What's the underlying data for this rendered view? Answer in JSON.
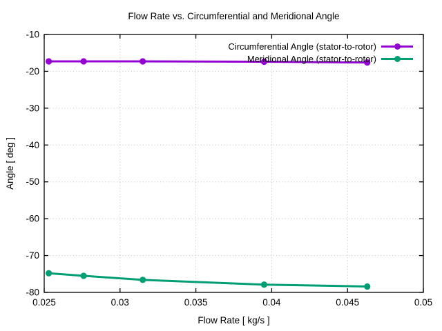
{
  "chart_data": {
    "type": "line",
    "title": "Flow Rate vs. Circumferential and Meridional Angle",
    "xlabel": "Flow Rate [ kg/s ]",
    "ylabel": "Angle [ deg ]",
    "xlim": [
      0.025,
      0.05
    ],
    "ylim": [
      -80,
      -10
    ],
    "xticks": [
      0.025,
      0.03,
      0.035,
      0.04,
      0.045,
      0.05
    ],
    "xtick_labels": [
      "0.025",
      "0.03",
      "0.035",
      "0.04",
      "0.045",
      "0.05"
    ],
    "yticks": [
      -80,
      -70,
      -60,
      -50,
      -40,
      -30,
      -20,
      -10
    ],
    "ytick_labels": [
      "-80",
      "-70",
      "-60",
      "-50",
      "-40",
      "-30",
      "-20",
      "-10"
    ],
    "grid": true,
    "legend_position": "top-right-inside",
    "x": [
      0.0253,
      0.0276,
      0.0315,
      0.0395,
      0.0463
    ],
    "series": [
      {
        "name": "Circumferential Angle (stator-to-rotor)",
        "color": "#9400D3",
        "marker": "filled-circle",
        "values": [
          -17.3,
          -17.3,
          -17.3,
          -17.4,
          -17.6
        ]
      },
      {
        "name": "Meridional Angle (stator-to-rotor)",
        "color": "#009E73",
        "marker": "filled-circle",
        "values": [
          -74.8,
          -75.5,
          -76.6,
          -77.9,
          -78.4
        ]
      }
    ],
    "axis_color": "#000000",
    "grid_color": "#bdbdbd",
    "background_color": "#ffffff"
  }
}
